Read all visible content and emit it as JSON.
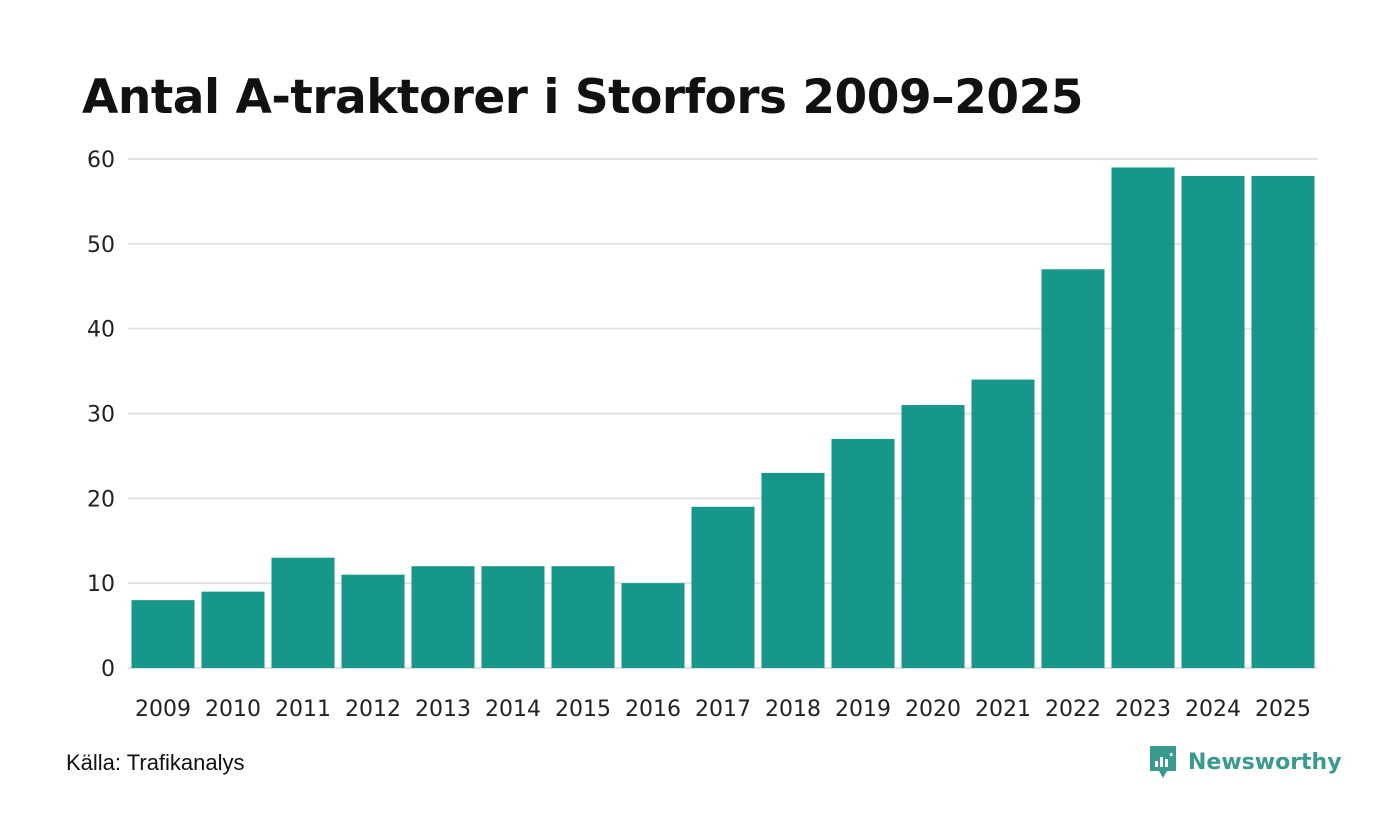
{
  "title": "Antal A-traktorer i Storfors 2009–2025",
  "source": "Källa: Trafikanalys",
  "brand": {
    "name": "Newsworthy",
    "icon": "newsworthy-logo-icon",
    "color": "#3a9a8d"
  },
  "chart_data": {
    "type": "bar",
    "title": "Antal A-traktorer i Storfors 2009–2025",
    "xlabel": "",
    "ylabel": "",
    "categories": [
      "2009",
      "2010",
      "2011",
      "2012",
      "2013",
      "2014",
      "2015",
      "2016",
      "2017",
      "2018",
      "2019",
      "2020",
      "2021",
      "2022",
      "2023",
      "2024",
      "2025"
    ],
    "values": [
      8,
      9,
      13,
      11,
      12,
      12,
      12,
      10,
      19,
      23,
      27,
      31,
      34,
      47,
      59,
      58,
      58
    ],
    "ylim": [
      0,
      60
    ],
    "yticks": [
      0,
      10,
      20,
      30,
      40,
      50,
      60
    ],
    "grid": true,
    "bar_color": "#16978a",
    "grid_color": "#e2e2e6"
  }
}
